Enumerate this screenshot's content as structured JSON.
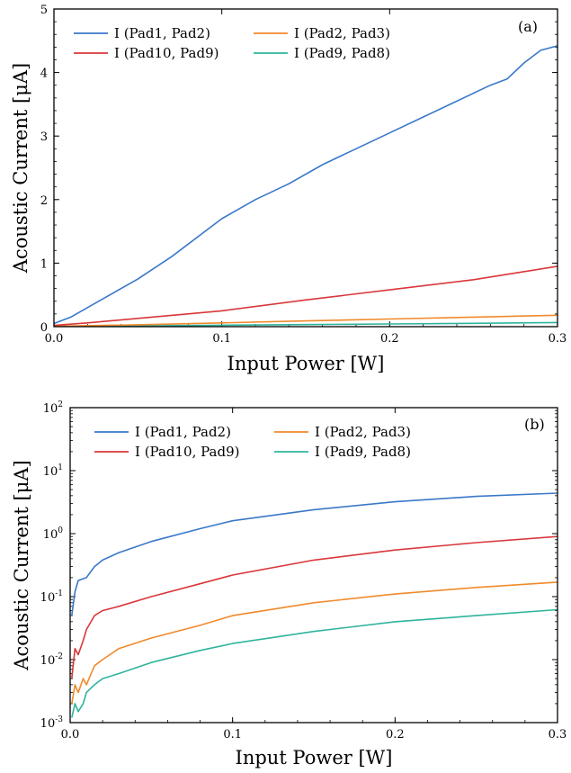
{
  "chart_data": [
    {
      "type": "line",
      "panel_label": "(a)",
      "xlabel": "Input Power [W]",
      "ylabel": "Acoustic Current [μA]",
      "xlim": [
        0,
        0.3
      ],
      "ylim": [
        0,
        5
      ],
      "yscale": "linear",
      "xticks": [
        {
          "value": 0.0,
          "label": "0.0"
        },
        {
          "value": 0.1,
          "label": "0.1"
        },
        {
          "value": 0.2,
          "label": "0.2"
        },
        {
          "value": 0.3,
          "label": "0.3"
        }
      ],
      "yticks": [
        {
          "value": 0,
          "label": "0"
        },
        {
          "value": 1,
          "label": "1"
        },
        {
          "value": 2,
          "label": "2"
        },
        {
          "value": 3,
          "label": "3"
        },
        {
          "value": 4,
          "label": "4"
        },
        {
          "value": 5,
          "label": "5"
        }
      ],
      "legend_position": "top-left",
      "grid": false,
      "series": [
        {
          "name": "I (Pad1, Pad2)",
          "color": "#3a78c9",
          "x": [
            0.0,
            0.01,
            0.02,
            0.03,
            0.05,
            0.07,
            0.09,
            0.1,
            0.11,
            0.12,
            0.14,
            0.16,
            0.18,
            0.2,
            0.22,
            0.24,
            0.26,
            0.27,
            0.28,
            0.29,
            0.3
          ],
          "y": [
            0.05,
            0.15,
            0.3,
            0.45,
            0.75,
            1.1,
            1.5,
            1.7,
            1.85,
            2.0,
            2.25,
            2.55,
            2.8,
            3.05,
            3.3,
            3.55,
            3.8,
            3.9,
            4.15,
            4.35,
            4.42
          ]
        },
        {
          "name": "I (Pad10, Pad9)",
          "color": "#d9373a",
          "x": [
            0.0,
            0.02,
            0.05,
            0.1,
            0.15,
            0.2,
            0.25,
            0.3
          ],
          "y": [
            0.02,
            0.06,
            0.13,
            0.25,
            0.42,
            0.58,
            0.74,
            0.95
          ]
        },
        {
          "name": "I (Pad2, Pad3)",
          "color": "#f08a2c",
          "x": [
            0.0,
            0.05,
            0.1,
            0.15,
            0.2,
            0.25,
            0.3
          ],
          "y": [
            0.005,
            0.03,
            0.06,
            0.09,
            0.12,
            0.15,
            0.18
          ]
        },
        {
          "name": "I (Pad9, Pad8)",
          "color": "#2fb49c",
          "x": [
            0.0,
            0.05,
            0.1,
            0.15,
            0.2,
            0.25,
            0.3
          ],
          "y": [
            0.002,
            0.012,
            0.022,
            0.032,
            0.043,
            0.053,
            0.065
          ]
        }
      ]
    },
    {
      "type": "line",
      "panel_label": "(b)",
      "xlabel": "Input Power [W]",
      "ylabel": "Acoustic Current [μA]",
      "xlim": [
        0,
        0.3
      ],
      "ylim": [
        0.001,
        100
      ],
      "yscale": "log",
      "xticks": [
        {
          "value": 0.0,
          "label": "0.0"
        },
        {
          "value": 0.1,
          "label": "0.1"
        },
        {
          "value": 0.2,
          "label": "0.2"
        },
        {
          "value": 0.3,
          "label": "0.3"
        }
      ],
      "yticks": [
        {
          "value": 0.001,
          "base": "10",
          "exp": "-3"
        },
        {
          "value": 0.01,
          "base": "10",
          "exp": "-2"
        },
        {
          "value": 0.1,
          "base": "10",
          "exp": "-1"
        },
        {
          "value": 1,
          "base": "10",
          "exp": "0"
        },
        {
          "value": 10,
          "base": "10",
          "exp": "1"
        },
        {
          "value": 100,
          "base": "10",
          "exp": "2"
        }
      ],
      "legend_position": "top-center",
      "grid": false,
      "series": [
        {
          "name": "I (Pad1, Pad2)",
          "color": "#3a78c9",
          "x": [
            0.001,
            0.003,
            0.005,
            0.01,
            0.015,
            0.02,
            0.03,
            0.05,
            0.08,
            0.1,
            0.15,
            0.2,
            0.25,
            0.3
          ],
          "y": [
            0.05,
            0.12,
            0.18,
            0.2,
            0.3,
            0.38,
            0.5,
            0.75,
            1.2,
            1.6,
            2.4,
            3.2,
            3.9,
            4.4
          ]
        },
        {
          "name": "I (Pad10, Pad9)",
          "color": "#d9373a",
          "x": [
            0.001,
            0.003,
            0.005,
            0.008,
            0.01,
            0.015,
            0.02,
            0.03,
            0.05,
            0.08,
            0.1,
            0.15,
            0.2,
            0.25,
            0.3
          ],
          "y": [
            0.005,
            0.015,
            0.012,
            0.02,
            0.03,
            0.05,
            0.06,
            0.07,
            0.1,
            0.16,
            0.22,
            0.38,
            0.55,
            0.72,
            0.9
          ]
        },
        {
          "name": "I (Pad2, Pad3)",
          "color": "#f08a2c",
          "x": [
            0.001,
            0.003,
            0.005,
            0.008,
            0.01,
            0.015,
            0.02,
            0.03,
            0.05,
            0.08,
            0.1,
            0.15,
            0.2,
            0.25,
            0.3
          ],
          "y": [
            0.002,
            0.004,
            0.003,
            0.005,
            0.004,
            0.008,
            0.01,
            0.015,
            0.022,
            0.035,
            0.05,
            0.08,
            0.11,
            0.14,
            0.17
          ]
        },
        {
          "name": "I (Pad9, Pad8)",
          "color": "#2fb49c",
          "x": [
            0.001,
            0.003,
            0.005,
            0.008,
            0.01,
            0.015,
            0.02,
            0.03,
            0.05,
            0.08,
            0.1,
            0.15,
            0.2,
            0.25,
            0.3
          ],
          "y": [
            0.0012,
            0.002,
            0.0015,
            0.002,
            0.003,
            0.004,
            0.005,
            0.006,
            0.009,
            0.014,
            0.018,
            0.028,
            0.04,
            0.05,
            0.062
          ]
        }
      ]
    }
  ]
}
